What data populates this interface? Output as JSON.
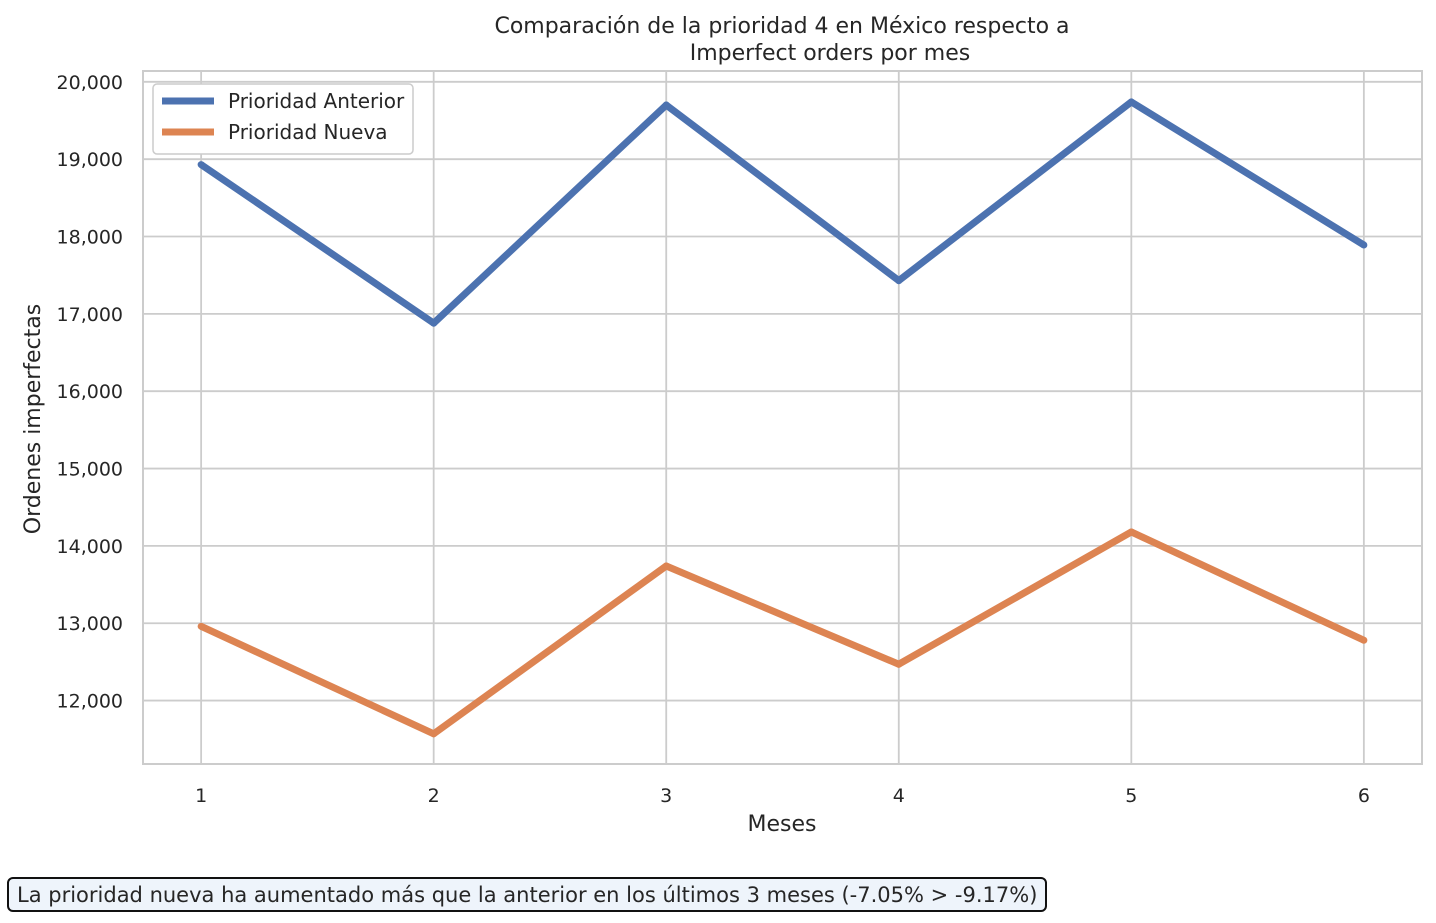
{
  "chart_data": {
    "type": "line",
    "title_line1": "Comparación de la prioridad 4 en México respecto a",
    "title_line2": "Imperfect orders por mes",
    "xlabel": "Meses",
    "ylabel": "Ordenes imperfectas",
    "x": [
      1,
      2,
      3,
      4,
      5,
      6
    ],
    "x_tick_labels": [
      "1",
      "2",
      "3",
      "4",
      "5",
      "6"
    ],
    "y_ticks": [
      12000,
      13000,
      14000,
      15000,
      16000,
      17000,
      18000,
      19000,
      20000
    ],
    "y_tick_labels": [
      "12,000",
      "13,000",
      "14,000",
      "15,000",
      "16,000",
      "17,000",
      "18,000",
      "19,000",
      "20,000"
    ],
    "xlim": [
      0.75,
      6.25
    ],
    "ylim": [
      11180,
      20140
    ],
    "grid": true,
    "legend_position": "top-left",
    "series": [
      {
        "name": "Prioridad Anterior",
        "color": "#4c72b0",
        "values": [
          18930,
          16880,
          19700,
          17430,
          19740,
          17890
        ]
      },
      {
        "name": "Prioridad Nueva",
        "color": "#dd8452",
        "values": [
          12960,
          11570,
          13740,
          12470,
          14180,
          12780
        ]
      }
    ]
  },
  "note": {
    "text": "La prioridad nueva ha aumentado más que la anterior en los últimos 3 meses (-7.05% > -9.17%)"
  }
}
